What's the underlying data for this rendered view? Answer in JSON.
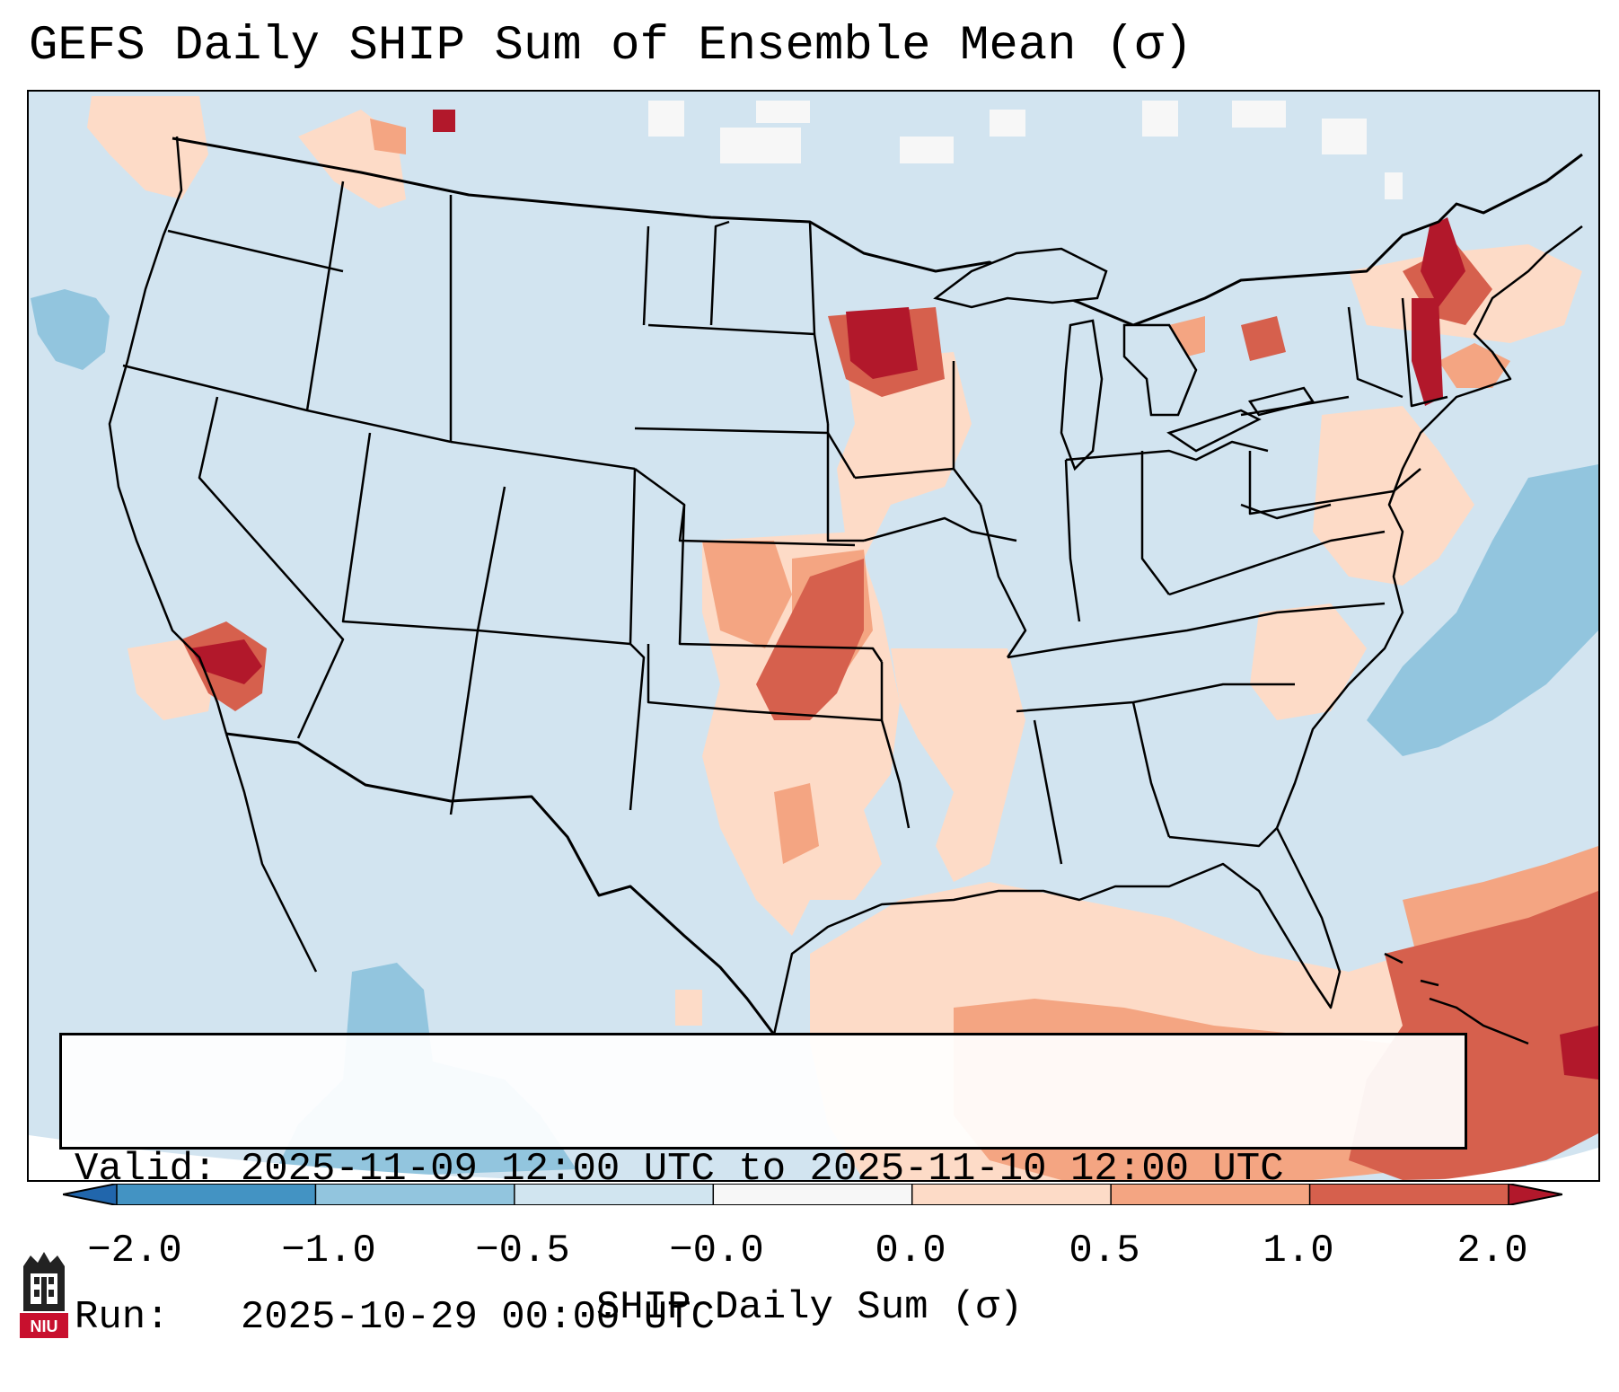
{
  "title": "GEFS Daily SHIP Sum of Ensemble Mean (σ)",
  "info": {
    "valid_line": "Valid: 2025-11-09 12:00 UTC to 2025-11-10 12:00 UTC",
    "run_line": "Run:   2025-10-29 00:00 UTC"
  },
  "colorbar": {
    "label": "SHIP Daily Sum (σ)",
    "ticks": [
      "−2.0",
      "−1.0",
      "−0.5",
      "−0.0",
      "0.0",
      "0.5",
      "1.0",
      "2.0"
    ],
    "bins": [
      {
        "range": "< -2.0",
        "color": "#2166ac"
      },
      {
        "range": "-2.0 to -1.0",
        "color": "#4393c3"
      },
      {
        "range": "-1.0 to -0.5",
        "color": "#92c5de"
      },
      {
        "range": "-0.5 to -0.0",
        "color": "#d1e5f0"
      },
      {
        "range": "-0.0 to 0.0",
        "color": "#f7f7f7"
      },
      {
        "range": "0.0 to 0.5",
        "color": "#fddbc7"
      },
      {
        "range": "0.5 to 1.0",
        "color": "#f4a582"
      },
      {
        "range": "1.0 to 2.0",
        "color": "#d6604d"
      },
      {
        "range": "> 2.0",
        "color": "#b2182b"
      }
    ]
  },
  "logo": {
    "text": "NIU",
    "color": "#c8102e"
  },
  "map": {
    "region": "Continental United States",
    "background_color": "#d2e4f0"
  }
}
